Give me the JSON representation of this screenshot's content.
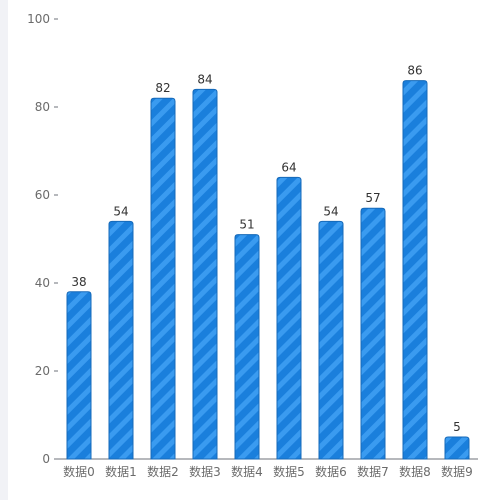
{
  "chart_data": {
    "type": "bar",
    "categories": [
      "数据0",
      "数据1",
      "数据2",
      "数据3",
      "数据4",
      "数据5",
      "数据6",
      "数据7",
      "数据8",
      "数据9"
    ],
    "values": [
      38,
      54,
      82,
      84,
      51,
      64,
      54,
      57,
      86,
      5
    ],
    "ylim": [
      0,
      100
    ],
    "yticks": [
      0,
      20,
      40,
      60,
      80,
      100
    ],
    "title": "",
    "xlabel": "",
    "ylabel": "",
    "grid": false,
    "colors": {
      "bar": "#1a7fdc",
      "bar_stripe": "#3a9bf0",
      "bar_edge": "#1669b8",
      "gutter": "#f1f2f6"
    }
  }
}
